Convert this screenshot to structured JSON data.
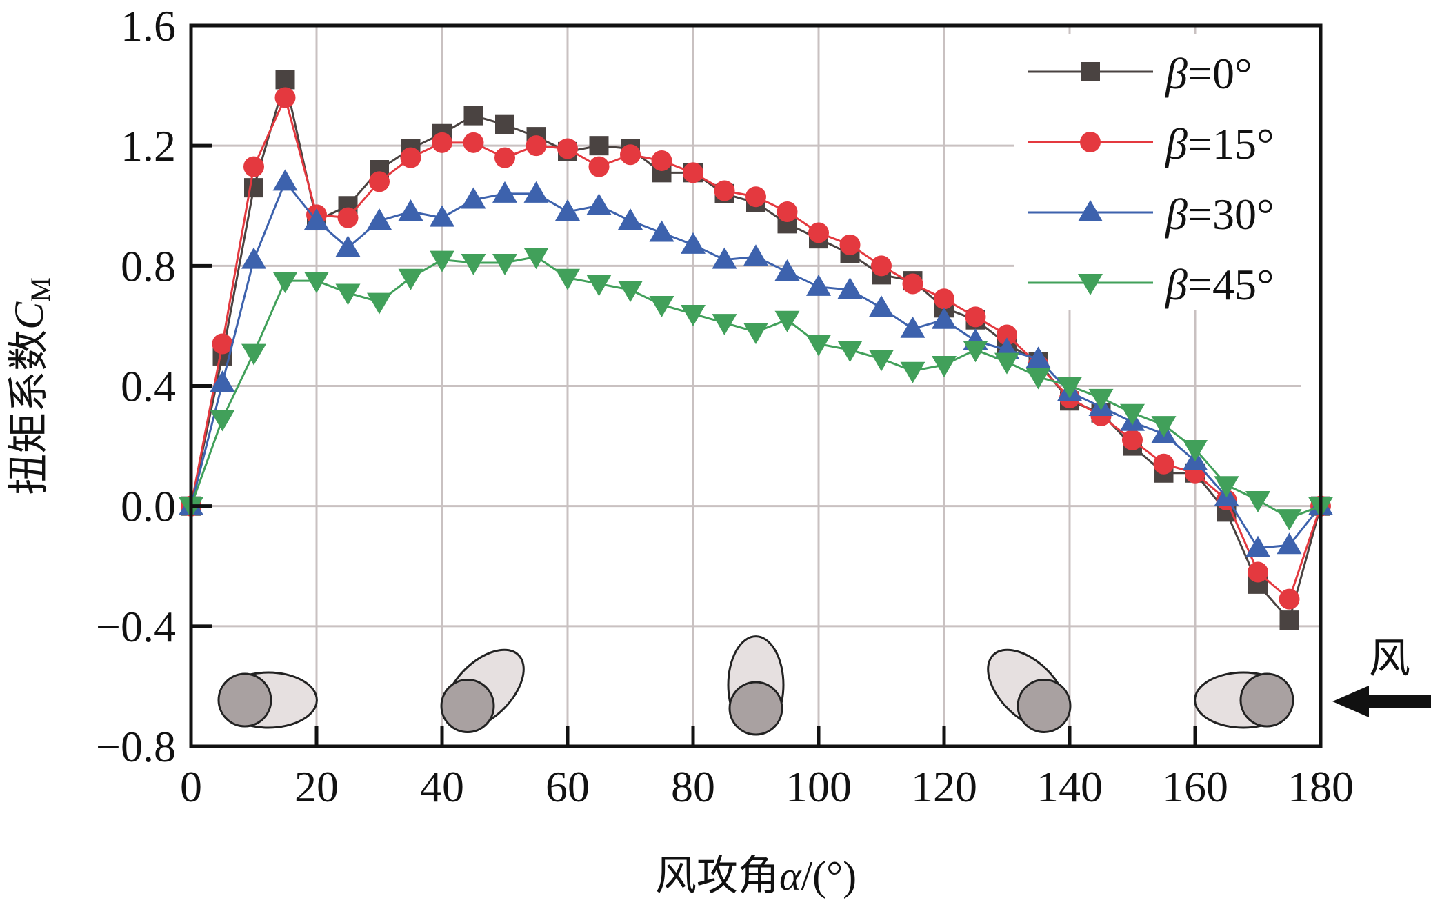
{
  "chart_data": {
    "type": "line",
    "title": "",
    "xlabel_prefix": "风攻角",
    "xlabel_symbol": "α",
    "xlabel_unit": "/(°)",
    "ylabel_prefix": "扭矩系数",
    "ylabel_symbol": "C",
    "ylabel_subscript": "M",
    "wind_label": "风",
    "xlim": [
      0,
      180
    ],
    "ylim": [
      -0.8,
      1.6
    ],
    "xticks": [
      0,
      20,
      40,
      60,
      80,
      100,
      120,
      140,
      160,
      180
    ],
    "xtick_labels": [
      "0",
      "20",
      "40",
      "60",
      "80",
      "100",
      "120",
      "140",
      "160",
      "180"
    ],
    "yticks": [
      -0.8,
      -0.4,
      0.0,
      0.4,
      0.8,
      1.2,
      1.6
    ],
    "ytick_labels": [
      "−0.8",
      "−0.4",
      "0.0",
      "0.4",
      "0.8",
      "1.2",
      "1.6"
    ],
    "grid": true,
    "legend_position": "top-right",
    "x": [
      0,
      5,
      10,
      15,
      20,
      25,
      30,
      35,
      40,
      45,
      50,
      55,
      60,
      65,
      70,
      75,
      80,
      85,
      90,
      95,
      100,
      105,
      110,
      115,
      120,
      125,
      130,
      135,
      140,
      145,
      150,
      155,
      160,
      165,
      170,
      175,
      180
    ],
    "series": [
      {
        "name": "β=0°",
        "symbol": "β",
        "value_label": "=0°",
        "marker": "square",
        "color": "#4a4341",
        "values": [
          0,
          0.5,
          1.06,
          1.42,
          0.95,
          1.0,
          1.12,
          1.19,
          1.24,
          1.3,
          1.27,
          1.23,
          1.18,
          1.2,
          1.19,
          1.11,
          1.11,
          1.04,
          1.01,
          0.94,
          0.89,
          0.84,
          0.77,
          0.75,
          0.66,
          0.62,
          0.54,
          0.48,
          0.35,
          0.31,
          0.2,
          0.11,
          0.11,
          -0.02,
          -0.26,
          -0.38,
          0
        ]
      },
      {
        "name": "β=15°",
        "symbol": "β",
        "value_label": "=15°",
        "marker": "circle",
        "color": "#e4393f",
        "values": [
          0,
          0.54,
          1.13,
          1.36,
          0.97,
          0.96,
          1.08,
          1.16,
          1.21,
          1.21,
          1.16,
          1.2,
          1.19,
          1.13,
          1.17,
          1.15,
          1.11,
          1.05,
          1.03,
          0.98,
          0.91,
          0.87,
          0.8,
          0.74,
          0.69,
          0.63,
          0.57,
          0.47,
          0.36,
          0.3,
          0.22,
          0.14,
          0.11,
          0.02,
          -0.22,
          -0.31,
          0
        ]
      },
      {
        "name": "β=30°",
        "symbol": "β",
        "value_label": "=30°",
        "marker": "triangle-up",
        "color": "#3d62ad",
        "values": [
          0,
          0.41,
          0.82,
          1.08,
          0.95,
          0.86,
          0.95,
          0.98,
          0.96,
          1.02,
          1.04,
          1.04,
          0.98,
          1.0,
          0.95,
          0.91,
          0.87,
          0.82,
          0.83,
          0.78,
          0.73,
          0.72,
          0.66,
          0.59,
          0.62,
          0.55,
          0.52,
          0.49,
          0.38,
          0.33,
          0.28,
          0.24,
          0.15,
          0.03,
          -0.14,
          -0.13,
          0
        ]
      },
      {
        "name": "β=45°",
        "symbol": "β",
        "value_label": "=45°",
        "marker": "triangle-down",
        "color": "#41a05a",
        "values": [
          0,
          0.29,
          0.51,
          0.75,
          0.75,
          0.71,
          0.68,
          0.76,
          0.82,
          0.81,
          0.81,
          0.83,
          0.76,
          0.74,
          0.72,
          0.67,
          0.64,
          0.61,
          0.58,
          0.62,
          0.54,
          0.52,
          0.49,
          0.45,
          0.47,
          0.52,
          0.48,
          0.43,
          0.4,
          0.36,
          0.31,
          0.27,
          0.19,
          0.07,
          0.02,
          -0.04,
          0
        ]
      }
    ],
    "section_icons_at": [
      0,
      45,
      90,
      135,
      180
    ]
  },
  "colors": {
    "grid": "#c9c1c1",
    "axis": "#111111",
    "section_dark": "#a9a1a1",
    "section_light": "#e6e0e0"
  }
}
